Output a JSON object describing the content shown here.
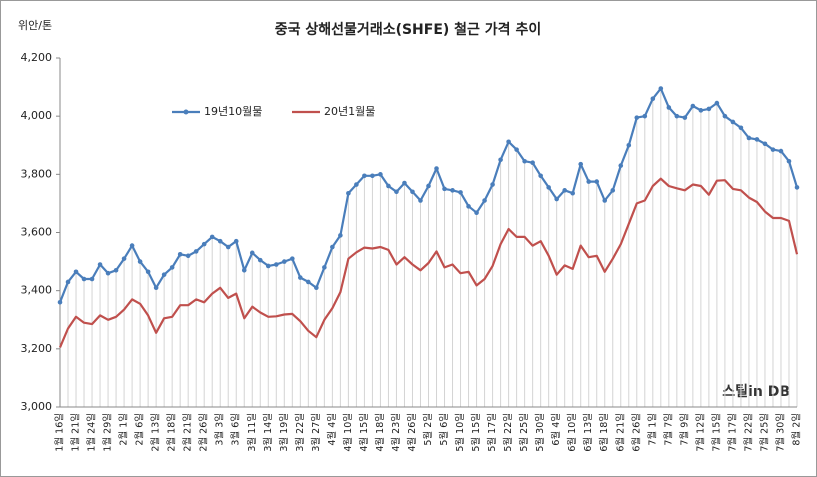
{
  "chart_data": {
    "type": "line",
    "title": "중국 상해선물거래소(SHFE)  철근 가격 추이",
    "y_axis_label": "위안/톤",
    "watermark": "스틸in DB",
    "categories": [
      "1월 16일",
      null,
      "1월 21일",
      null,
      "1월 24일",
      null,
      "1월 29일",
      null,
      "2월 1일",
      null,
      "2월 6일",
      null,
      "2월 13일",
      null,
      "2월 18일",
      null,
      "2월 21일",
      null,
      "2월 26일",
      null,
      "3월 3일",
      null,
      "3월 6일",
      null,
      "3월 11일",
      null,
      "3월 14일",
      null,
      "3월 19일",
      null,
      "3월 22일",
      null,
      "3월 27일",
      null,
      "4월 4일",
      null,
      "4월 10일",
      null,
      "4월 15일",
      null,
      "4월 18일",
      null,
      "4월 23일",
      null,
      "4월 26일",
      null,
      "5월 2일",
      null,
      "5월 6일",
      null,
      "5월 10일",
      null,
      "5월 15일",
      null,
      "5월 17일",
      null,
      "5월 22일",
      null,
      "5월 25일",
      null,
      "5월 30일",
      null,
      "6월 4일",
      null,
      "6월 10일",
      null,
      "6월 13일",
      null,
      "6월 18일",
      null,
      "6월 21일",
      null,
      "6월 26일",
      null,
      "7월 1일",
      null,
      "7월 7일",
      null,
      "7월 9일",
      null,
      "7월 12일",
      null,
      "7월 15일",
      null,
      "7월 17일",
      null,
      "7월 22일",
      null,
      "7월 25일",
      null,
      "7월 30일",
      null,
      "8월 2일"
    ],
    "series": [
      {
        "name": "19년10월물",
        "color": "#4a7ebb",
        "markers": true,
        "drop_lines": true,
        "values": [
          3360,
          3430,
          3465,
          3440,
          3440,
          3490,
          3460,
          3470,
          3510,
          3555,
          3500,
          3465,
          3410,
          3455,
          3480,
          3525,
          3520,
          3535,
          3560,
          3585,
          3570,
          3550,
          3570,
          3470,
          3530,
          3505,
          3485,
          3490,
          3500,
          3510,
          3445,
          3430,
          3410,
          3480,
          3550,
          3590,
          3735,
          3765,
          3795,
          3795,
          3800,
          3760,
          3740,
          3770,
          3740,
          3710,
          3760,
          3820,
          3750,
          3745,
          3738,
          3690,
          3668,
          3710,
          3765,
          3850,
          3912,
          3885,
          3845,
          3840,
          3795,
          3755,
          3715,
          3745,
          3735,
          3835,
          3775,
          3775,
          3710,
          3745,
          3830,
          3900,
          3995,
          4000,
          4060,
          4095,
          4030,
          4000,
          3995,
          4035,
          4020,
          4025,
          4045,
          4000,
          3980,
          3960,
          3925,
          3920,
          3905,
          3885,
          3880,
          3845,
          3755
        ]
      },
      {
        "name": "20년1월물",
        "color": "#c0504d",
        "markers": false,
        "drop_lines": false,
        "values": [
          3205,
          3270,
          3310,
          3290,
          3285,
          3315,
          3300,
          3310,
          3335,
          3370,
          3355,
          3315,
          3255,
          3305,
          3310,
          3350,
          3350,
          3370,
          3360,
          3390,
          3410,
          3375,
          3390,
          3305,
          3345,
          3325,
          3310,
          3312,
          3318,
          3320,
          3295,
          3262,
          3240,
          3300,
          3340,
          3395,
          3510,
          3532,
          3548,
          3545,
          3550,
          3540,
          3490,
          3515,
          3490,
          3470,
          3495,
          3535,
          3480,
          3490,
          3460,
          3465,
          3418,
          3440,
          3485,
          3560,
          3612,
          3585,
          3585,
          3555,
          3570,
          3520,
          3455,
          3487,
          3475,
          3555,
          3515,
          3520,
          3465,
          3510,
          3560,
          3630,
          3700,
          3710,
          3760,
          3785,
          3760,
          3752,
          3745,
          3765,
          3760,
          3730,
          3778,
          3780,
          3750,
          3745,
          3720,
          3705,
          3672,
          3650,
          3650,
          3640,
          3525
        ]
      }
    ],
    "ylim": [
      3000,
      4200
    ],
    "yticks": [
      {
        "value": 3000,
        "label": "3,000"
      },
      {
        "value": 3200,
        "label": "3,200"
      },
      {
        "value": 3400,
        "label": "3,400"
      },
      {
        "value": 3600,
        "label": "3,600"
      },
      {
        "value": 3800,
        "label": "3,800"
      },
      {
        "value": 4000,
        "label": "4,000"
      },
      {
        "value": 4200,
        "label": "4,200"
      }
    ],
    "grid": false,
    "legend": "top-left"
  }
}
